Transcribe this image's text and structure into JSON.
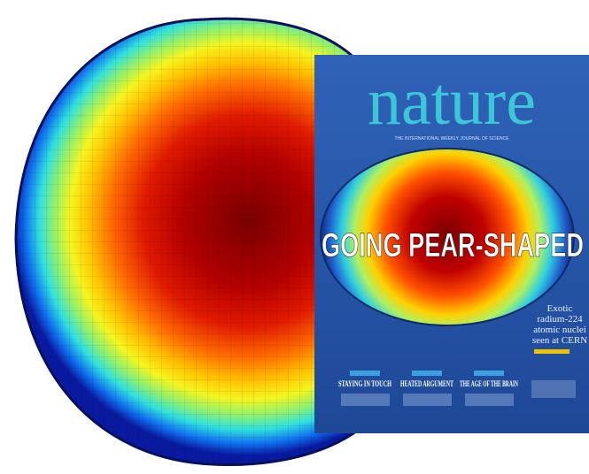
{
  "cover": {
    "masthead": "nature",
    "tagline": "THE INTERNATIONAL WEEKLY JOURNAL OF SCIENCE",
    "headline": "GOING PEAR-SHAPED",
    "side_story": [
      "Exotic",
      "radium-224",
      "atomic nuclei",
      "seen at CERN"
    ],
    "stories": [
      "STAYING IN TOUCH",
      "HEATED ARGUMENT",
      "THE AGE OF THE BRAIN"
    ]
  }
}
